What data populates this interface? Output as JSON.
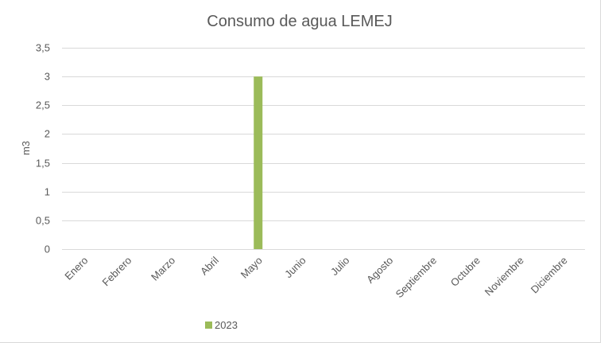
{
  "chart_data": {
    "type": "bar",
    "title": "Consumo de agua LEMEJ",
    "xlabel": "",
    "ylabel": "m3",
    "categories": [
      "Enero",
      "Febrero",
      "Marzo",
      "Abril",
      "Mayo",
      "Junio",
      "Julio",
      "Agosto",
      "Septiembre",
      "Octubre",
      "Noviembre",
      "Diciembre"
    ],
    "series": [
      {
        "name": "2023",
        "color": "#9bbb59",
        "values": [
          0,
          0,
          0,
          0,
          3,
          0,
          0,
          0,
          0,
          0,
          0,
          0
        ]
      }
    ],
    "ylim": [
      0,
      3.5
    ],
    "yticks": [
      "0",
      "0,5",
      "1",
      "1,5",
      "2",
      "2,5",
      "3",
      "3,5"
    ],
    "grid": true,
    "legend": "bottom"
  }
}
